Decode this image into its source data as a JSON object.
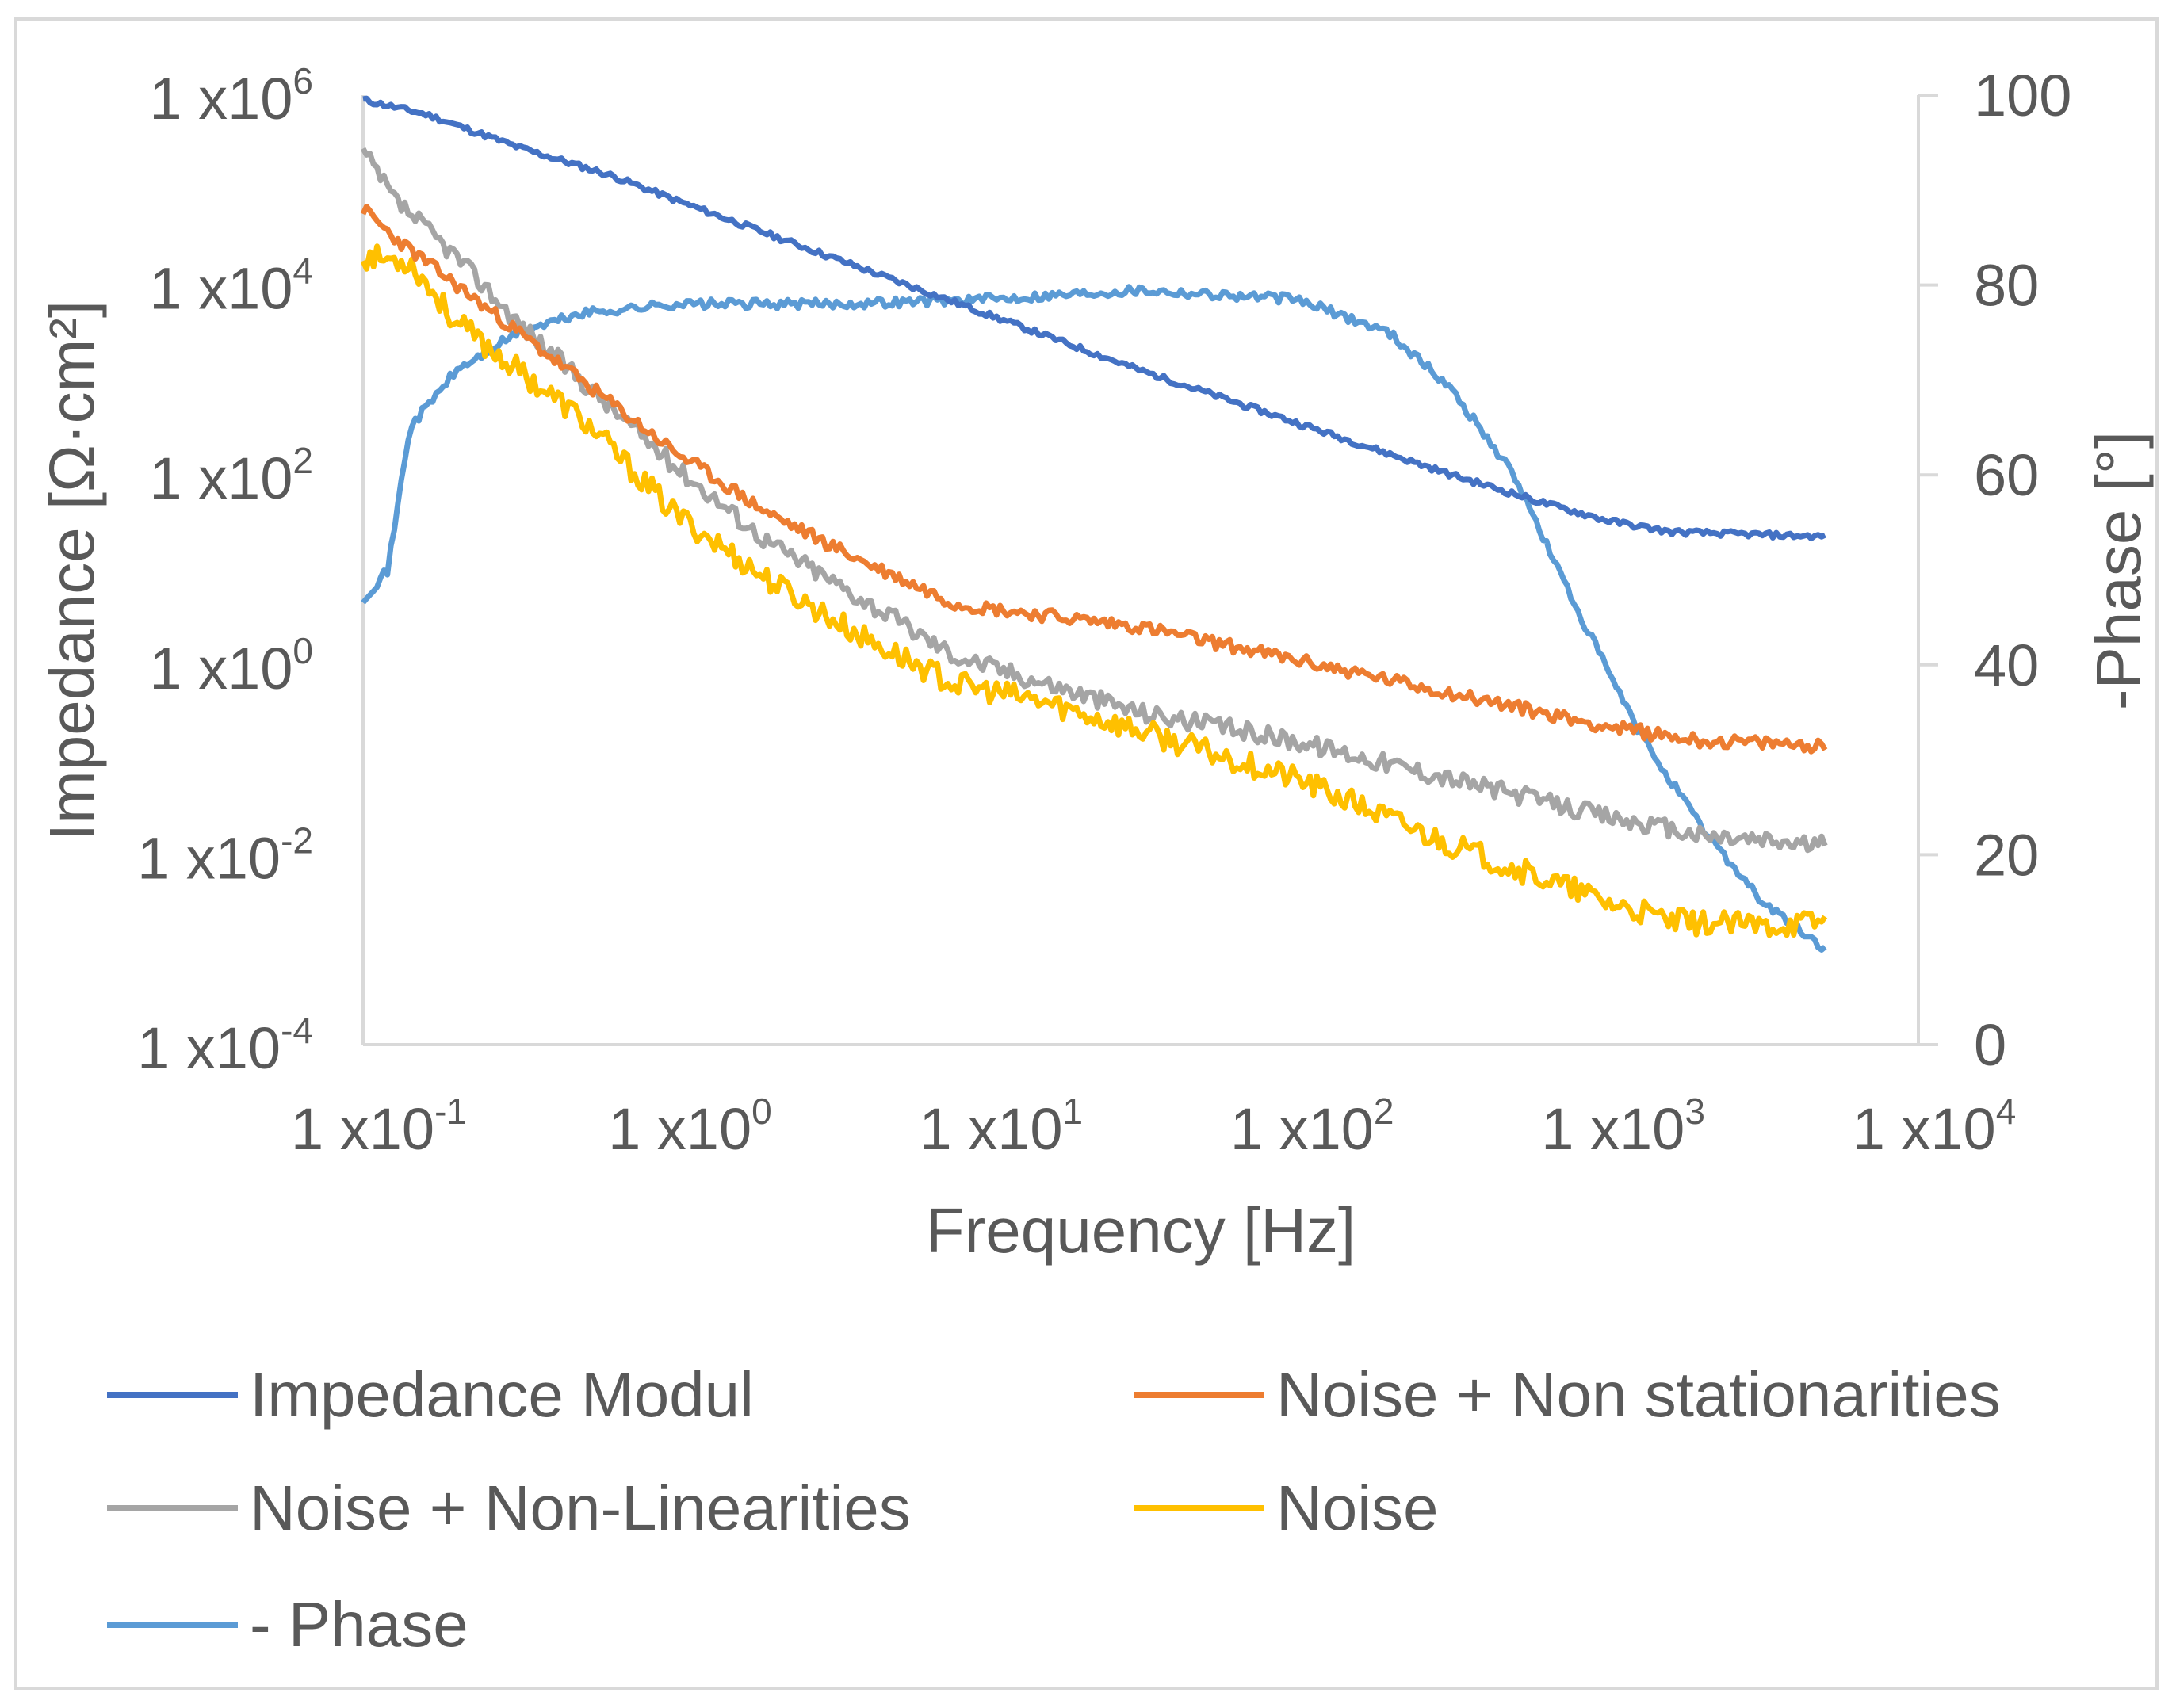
{
  "chart_data": {
    "type": "line",
    "title": "",
    "xlabel": "Frequency [Hz]",
    "ylabel_left": "Impedance [Ω·cm²]",
    "ylabel_right": "-Phase [°]",
    "x_scale": "log",
    "y_left_scale": "log",
    "xlim_log10": [
      -1,
      4
    ],
    "ylim_left_log10": [
      -4,
      6
    ],
    "ylim_right": [
      0,
      100
    ],
    "grid": false,
    "legend_position": "bottom",
    "x_ticks": [
      {
        "base": "1 x10",
        "exp": "-1"
      },
      {
        "base": "1 x10",
        "exp": "0"
      },
      {
        "base": "1 x10",
        "exp": "1"
      },
      {
        "base": "1 x10",
        "exp": "2"
      },
      {
        "base": "1 x10",
        "exp": "3"
      },
      {
        "base": "1 x10",
        "exp": "4"
      }
    ],
    "y_left_ticks": [
      {
        "base": "1 x10",
        "exp": "6"
      },
      {
        "base": "1 x10",
        "exp": "4"
      },
      {
        "base": "1 x10",
        "exp": "2"
      },
      {
        "base": "1 x10",
        "exp": "0"
      },
      {
        "base": "1 x10",
        "exp": "-2"
      },
      {
        "base": "1 x10",
        "exp": "-4"
      }
    ],
    "y_right_ticks": [
      "100",
      "80",
      "60",
      "40",
      "20",
      "0"
    ],
    "series": [
      {
        "name": "Impedance Modul",
        "axis": "left",
        "color": "#4472c4",
        "x_log10": [
          -1,
          -0.8,
          -0.5,
          -0.2,
          0,
          0.5,
          1,
          1.5,
          2,
          2.5,
          2.8,
          3,
          3.2,
          3.7
        ],
        "y_log10": [
          5.95,
          5.8,
          5.45,
          5.15,
          4.9,
          4.3,
          3.7,
          3.1,
          2.55,
          2.0,
          1.7,
          1.52,
          1.4,
          1.35
        ],
        "noise": 0.03,
        "seed": 11
      },
      {
        "name": "Noise + Non stationarities",
        "axis": "left",
        "color": "#ed7d31",
        "x_log10": [
          -1,
          -0.9,
          -0.7,
          -0.5,
          -0.3,
          0,
          0.3,
          0.6,
          0.9,
          1.0,
          1.5,
          2.0,
          2.5,
          3.0,
          3.3,
          3.7
        ],
        "y_log10": [
          4.8,
          4.5,
          4.0,
          3.5,
          3.0,
          2.25,
          1.6,
          1.1,
          0.65,
          0.6,
          0.4,
          0.05,
          -0.3,
          -0.65,
          -0.8,
          -0.85
        ],
        "noise": 0.07,
        "seed": 23
      },
      {
        "name": "Noise + Non-Linearities",
        "axis": "left",
        "color": "#a5a5a5",
        "x_log10": [
          -1,
          -0.9,
          -0.7,
          -0.5,
          -0.3,
          0,
          0.3,
          0.6,
          0.9,
          1.2,
          1.5,
          2.0,
          2.5,
          3.0,
          3.3,
          3.7
        ],
        "y_log10": [
          5.4,
          4.9,
          4.3,
          3.6,
          3.0,
          2.1,
          1.3,
          0.7,
          0.1,
          -0.2,
          -0.5,
          -0.8,
          -1.2,
          -1.6,
          -1.8,
          -1.9
        ],
        "noise": 0.1,
        "seed": 37
      },
      {
        "name": "Noise",
        "axis": "left",
        "color": "#ffc000",
        "x_log10": [
          -1,
          -0.85,
          -0.7,
          -0.5,
          -0.3,
          0,
          0.3,
          0.6,
          0.9,
          1.2,
          1.5,
          2.0,
          2.5,
          3.0,
          3.2,
          3.5,
          3.7
        ],
        "y_log10": [
          4.3,
          4.25,
          3.6,
          3.1,
          2.6,
          1.6,
          0.9,
          0.3,
          -0.2,
          -0.4,
          -0.7,
          -1.2,
          -1.9,
          -2.5,
          -2.7,
          -2.75,
          -2.7
        ],
        "noise": 0.13,
        "seed": 53
      },
      {
        "name": "- Phase",
        "axis": "right",
        "color": "#5b9bd5",
        "x_log10": [
          -1,
          -0.92,
          -0.85,
          -0.7,
          -0.5,
          -0.3,
          0,
          0.5,
          1.0,
          1.5,
          2.0,
          2.3,
          2.5,
          2.7,
          2.9,
          3.1,
          3.3,
          3.5,
          3.7
        ],
        "y": [
          47,
          50,
          65,
          71,
          75,
          77,
          78,
          78,
          78.5,
          79.5,
          78.5,
          75,
          69,
          60,
          46,
          33,
          23,
          15,
          10
        ],
        "noise": 0.5,
        "seed": 71
      }
    ]
  }
}
